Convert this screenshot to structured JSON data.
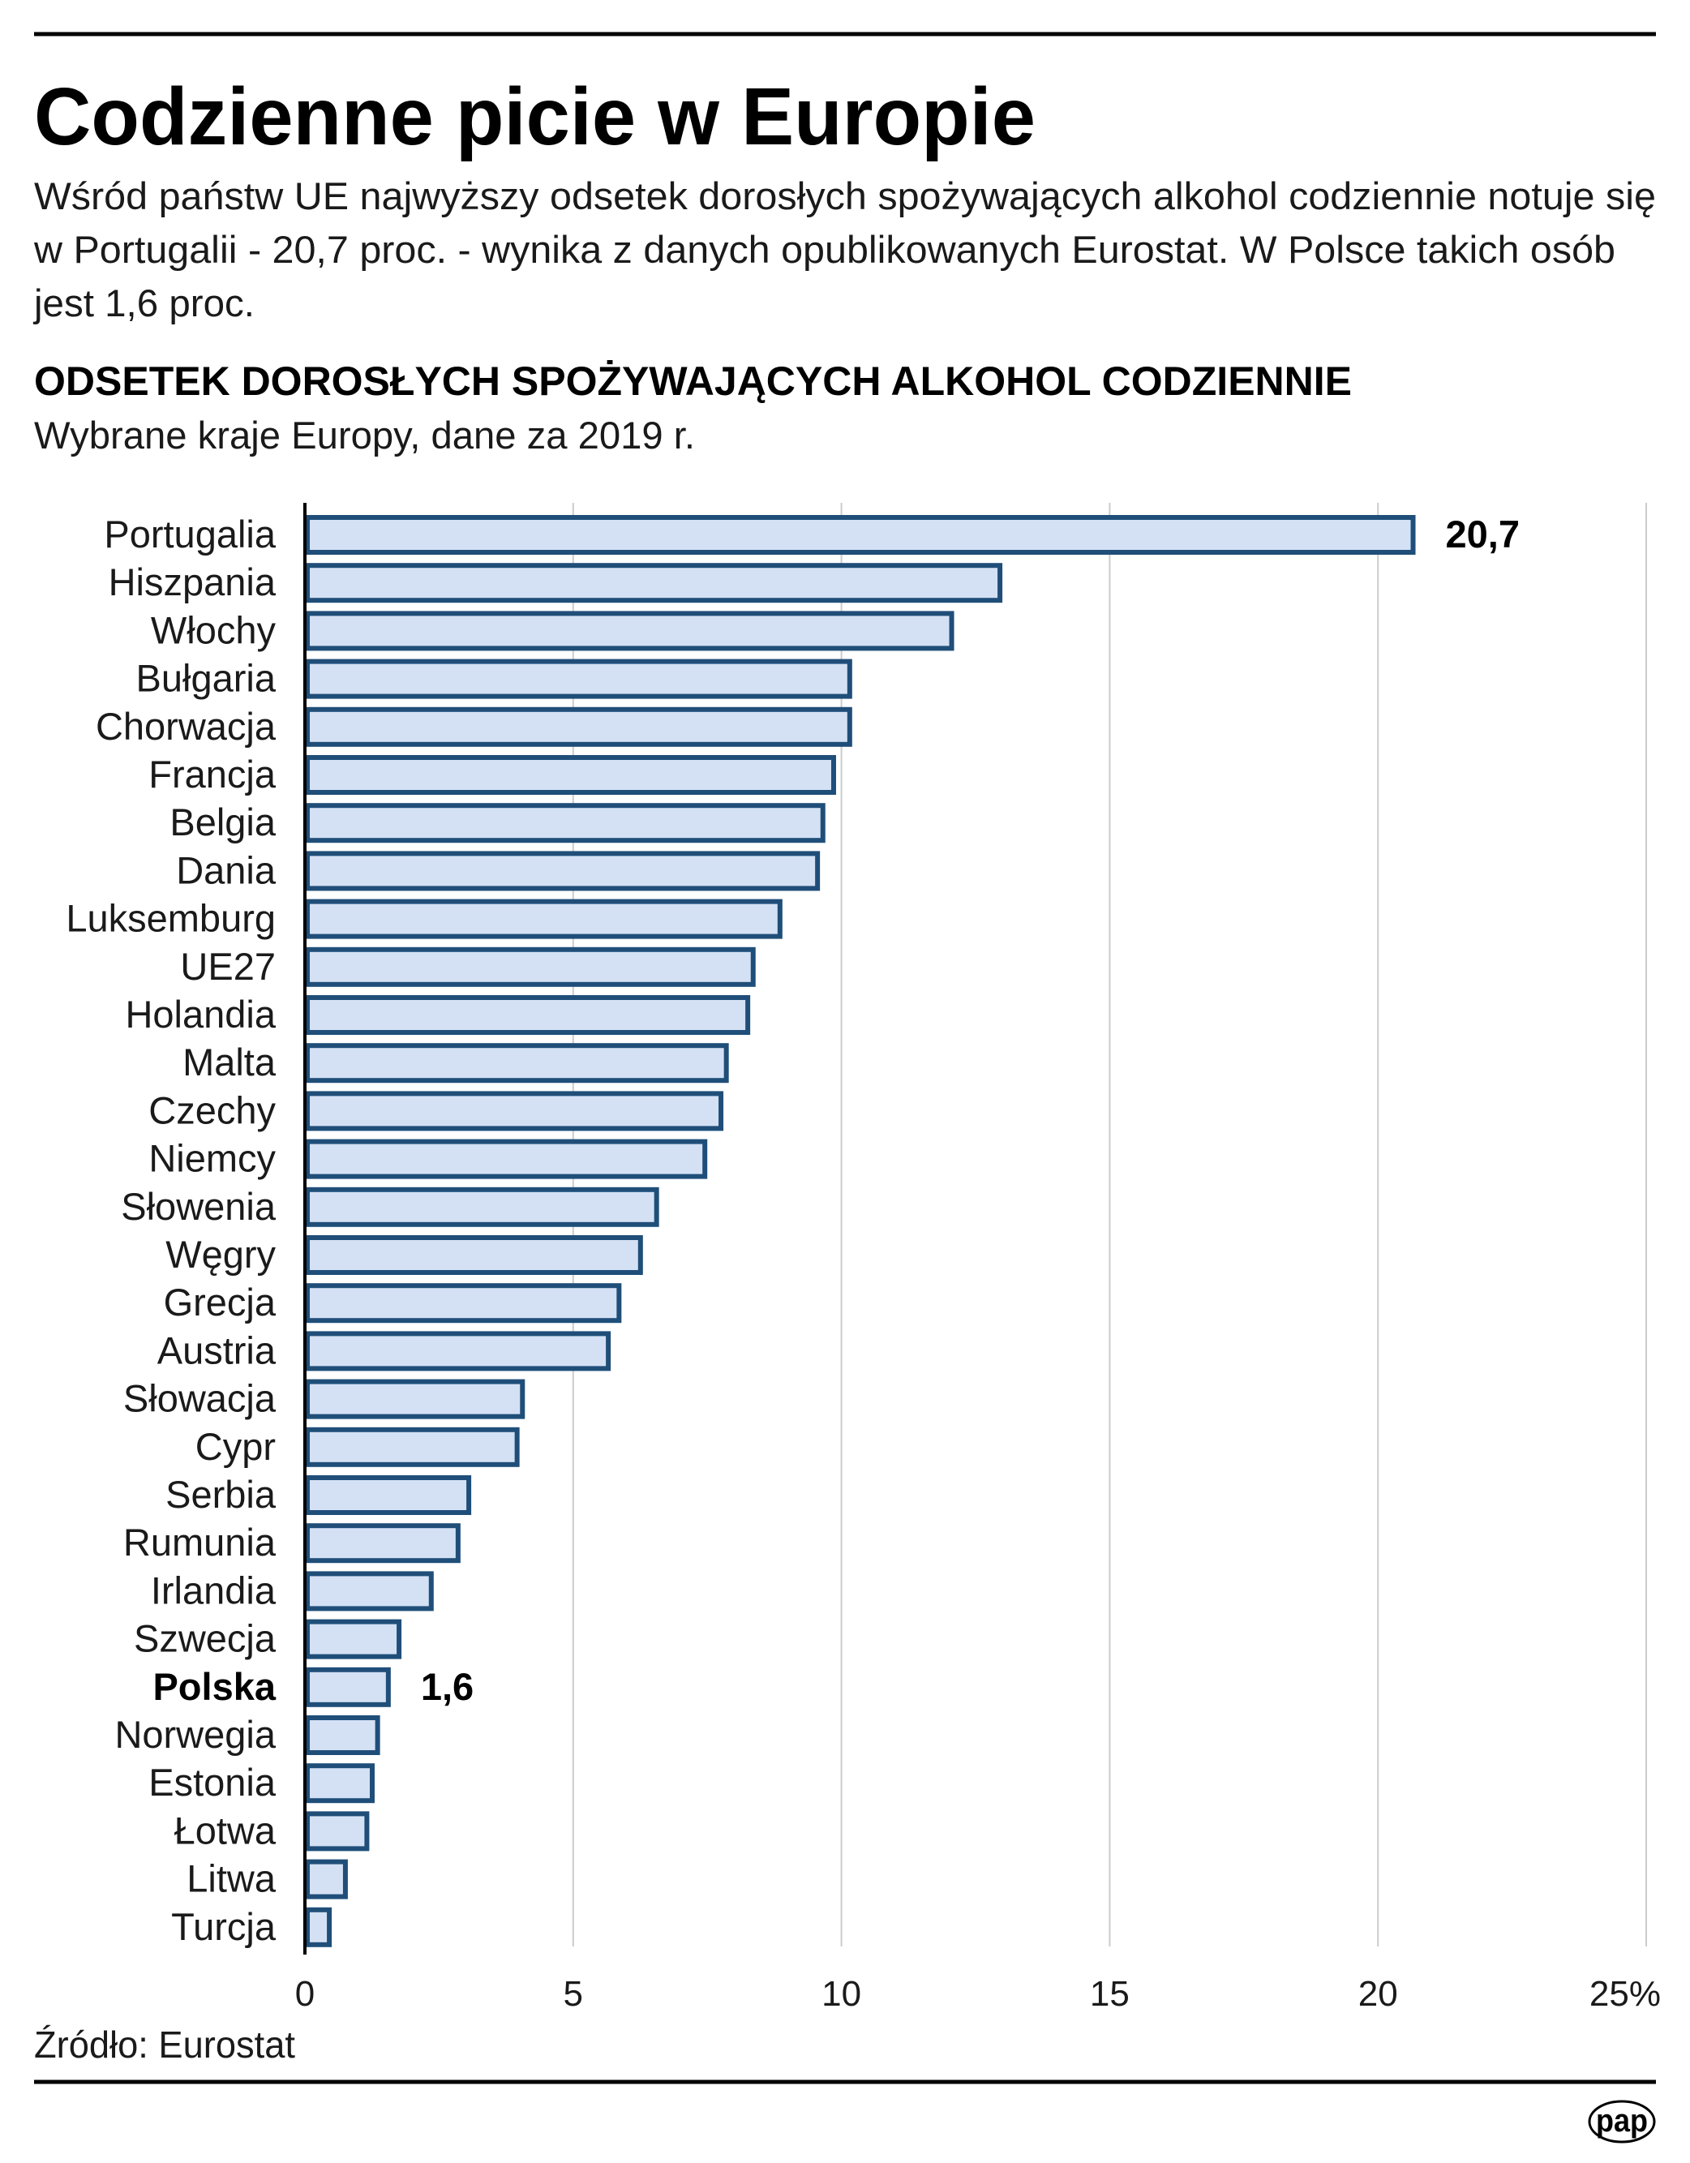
{
  "header": {
    "title": "Codzienne picie w Europie",
    "description_lines": [
      "Wśród państw UE najwyższy odsetek dorosłych spożywających alkohol codziennie notuje się",
      "w Portugalii - 20,7 proc. - wynika z danych opublikowanych Eurostat. W Polsce takich osób",
      "jest 1,6 proc."
    ]
  },
  "footer": {
    "source": "Źródło: Eurostat",
    "logo_text": "pap",
    "logo_icon": "pap-logo-icon"
  },
  "colors": {
    "bar_fill": "#d4e1f4",
    "bar_stroke": "#1f4e79",
    "gridline": "#cccccc",
    "text": "#000000"
  },
  "chart_data": {
    "type": "bar",
    "orientation": "horizontal",
    "title": "ODSETEK DOROSŁYCH SPOŻYWAJĄCYCH ALKOHOL CODZIENNIE",
    "subtitle": "Wybrane kraje Europy, dane za 2019 r.",
    "xlabel": "",
    "ylabel": "",
    "unit": "%",
    "xlim": [
      0,
      25
    ],
    "x_ticks": [
      0,
      5,
      10,
      15,
      20,
      25
    ],
    "x_tick_labels": [
      "0",
      "5",
      "10",
      "15",
      "20",
      "25%"
    ],
    "grid": true,
    "categories": [
      "Portugalia",
      "Hiszpania",
      "Włochy",
      "Bułgaria",
      "Chorwacja",
      "Francja",
      "Belgia",
      "Dania",
      "Luksemburg",
      "UE27",
      "Holandia",
      "Malta",
      "Czechy",
      "Niemcy",
      "Słowenia",
      "Węgry",
      "Grecja",
      "Austria",
      "Słowacja",
      "Cypr",
      "Serbia",
      "Rumunia",
      "Irlandia",
      "Szwecja",
      "Polska",
      "Norwegia",
      "Estonia",
      "Łotwa",
      "Litwa",
      "Turcja"
    ],
    "values": [
      20.7,
      13.0,
      12.1,
      10.2,
      10.2,
      9.9,
      9.7,
      9.6,
      8.9,
      8.4,
      8.3,
      7.9,
      7.8,
      7.5,
      6.6,
      6.3,
      5.9,
      5.7,
      4.1,
      4.0,
      3.1,
      2.9,
      2.4,
      1.8,
      1.6,
      1.4,
      1.3,
      1.2,
      0.8,
      0.5
    ],
    "highlighted": [
      "Polska"
    ],
    "data_labels": [
      {
        "category": "Portugalia",
        "text": "20,7"
      },
      {
        "category": "Polska",
        "text": "1,6"
      }
    ]
  }
}
